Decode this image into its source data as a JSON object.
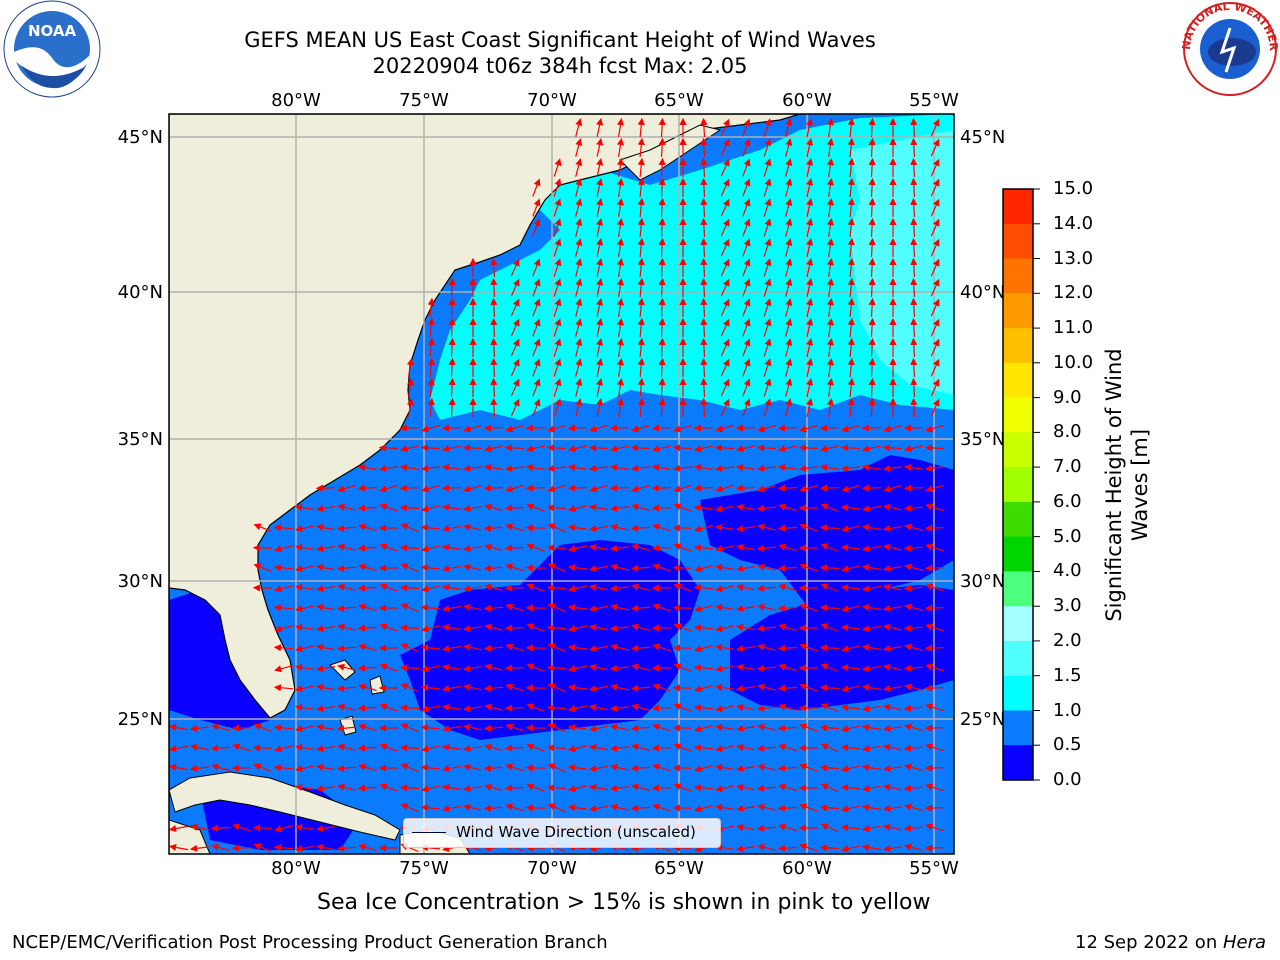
{
  "title": {
    "line1": "GEFS MEAN US East Coast Significant Height of Wind Waves",
    "line2": "20220904 t06z 384h fcst   Max: 2.05"
  },
  "map": {
    "lon_labels": [
      "80°W",
      "75°W",
      "70°W",
      "65°W",
      "60°W",
      "55°W"
    ],
    "lat_labels": [
      "45°N",
      "40°N",
      "35°N",
      "30°N",
      "25°N"
    ],
    "region": "US East Coast / Western North Atlantic",
    "colors": {
      "land": "#efeedb",
      "wave_0_0_5": "#0a00ff",
      "wave_0_5_1": "#0a7bff",
      "wave_1_1_5": "#00ffff",
      "wave_1_5_2": "#52ffff",
      "arrow": "#ff0000",
      "grid": "#b0b0b0"
    }
  },
  "legend": {
    "label": "Wind Wave Direction (unscaled)"
  },
  "colorbar": {
    "title": "Significant Height of Wind Waves [m]",
    "ticks": [
      "15.0",
      "14.0",
      "13.0",
      "12.0",
      "11.0",
      "10.0",
      "9.0",
      "8.0",
      "7.0",
      "6.0",
      "5.0",
      "4.0",
      "3.0",
      "2.0",
      "1.5",
      "1.0",
      "0.5",
      "0.0"
    ],
    "colors": [
      "#ff0000",
      "#ff2600",
      "#ff4d00",
      "#ff7300",
      "#ff9a00",
      "#ffbf00",
      "#ffe600",
      "#f0ff00",
      "#c9ff00",
      "#a2ff00",
      "#3fdc00",
      "#00d500",
      "#4dff7e",
      "#a6ffff",
      "#52ffff",
      "#00ffff",
      "#0a7bff",
      "#0a00ff"
    ]
  },
  "ice_note": "Sea Ice Concentration > 15% is shown in pink to yellow",
  "footer": {
    "left": "NCEP/EMC/Verification Post Processing Product Generation Branch",
    "right_date": "12 Sep 2022 on ",
    "right_host": "Hera"
  },
  "logos": {
    "noaa": "NOAA",
    "nws": "NATIONAL WEATHER SERVICE"
  }
}
